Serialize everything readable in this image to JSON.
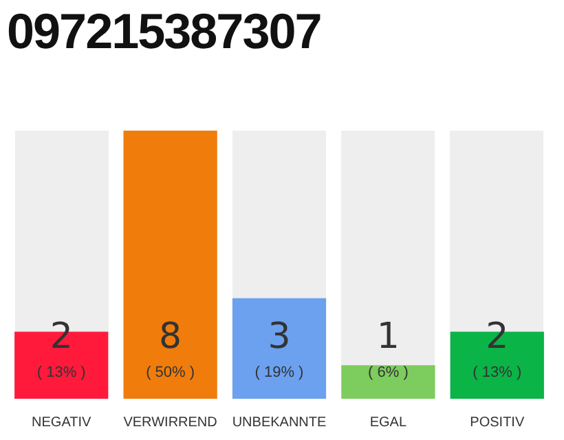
{
  "chart_data": {
    "type": "bar",
    "title": "097215387307",
    "categories": [
      "NEGATIV",
      "VERWIRREND",
      "UNBEKANNTE",
      "EGAL",
      "POSITIV"
    ],
    "values": [
      2,
      8,
      3,
      1,
      2
    ],
    "colors": [
      "#ff1a3c",
      "#f07c0c",
      "#6ba1ef",
      "#7dcc5e",
      "#0ab446"
    ],
    "data_labels": true,
    "annotations": [
      "( 13% )",
      "( 50% )",
      "( 19% )",
      "( 6% )",
      "( 13% )"
    ],
    "grid": false,
    "legend": false
  }
}
